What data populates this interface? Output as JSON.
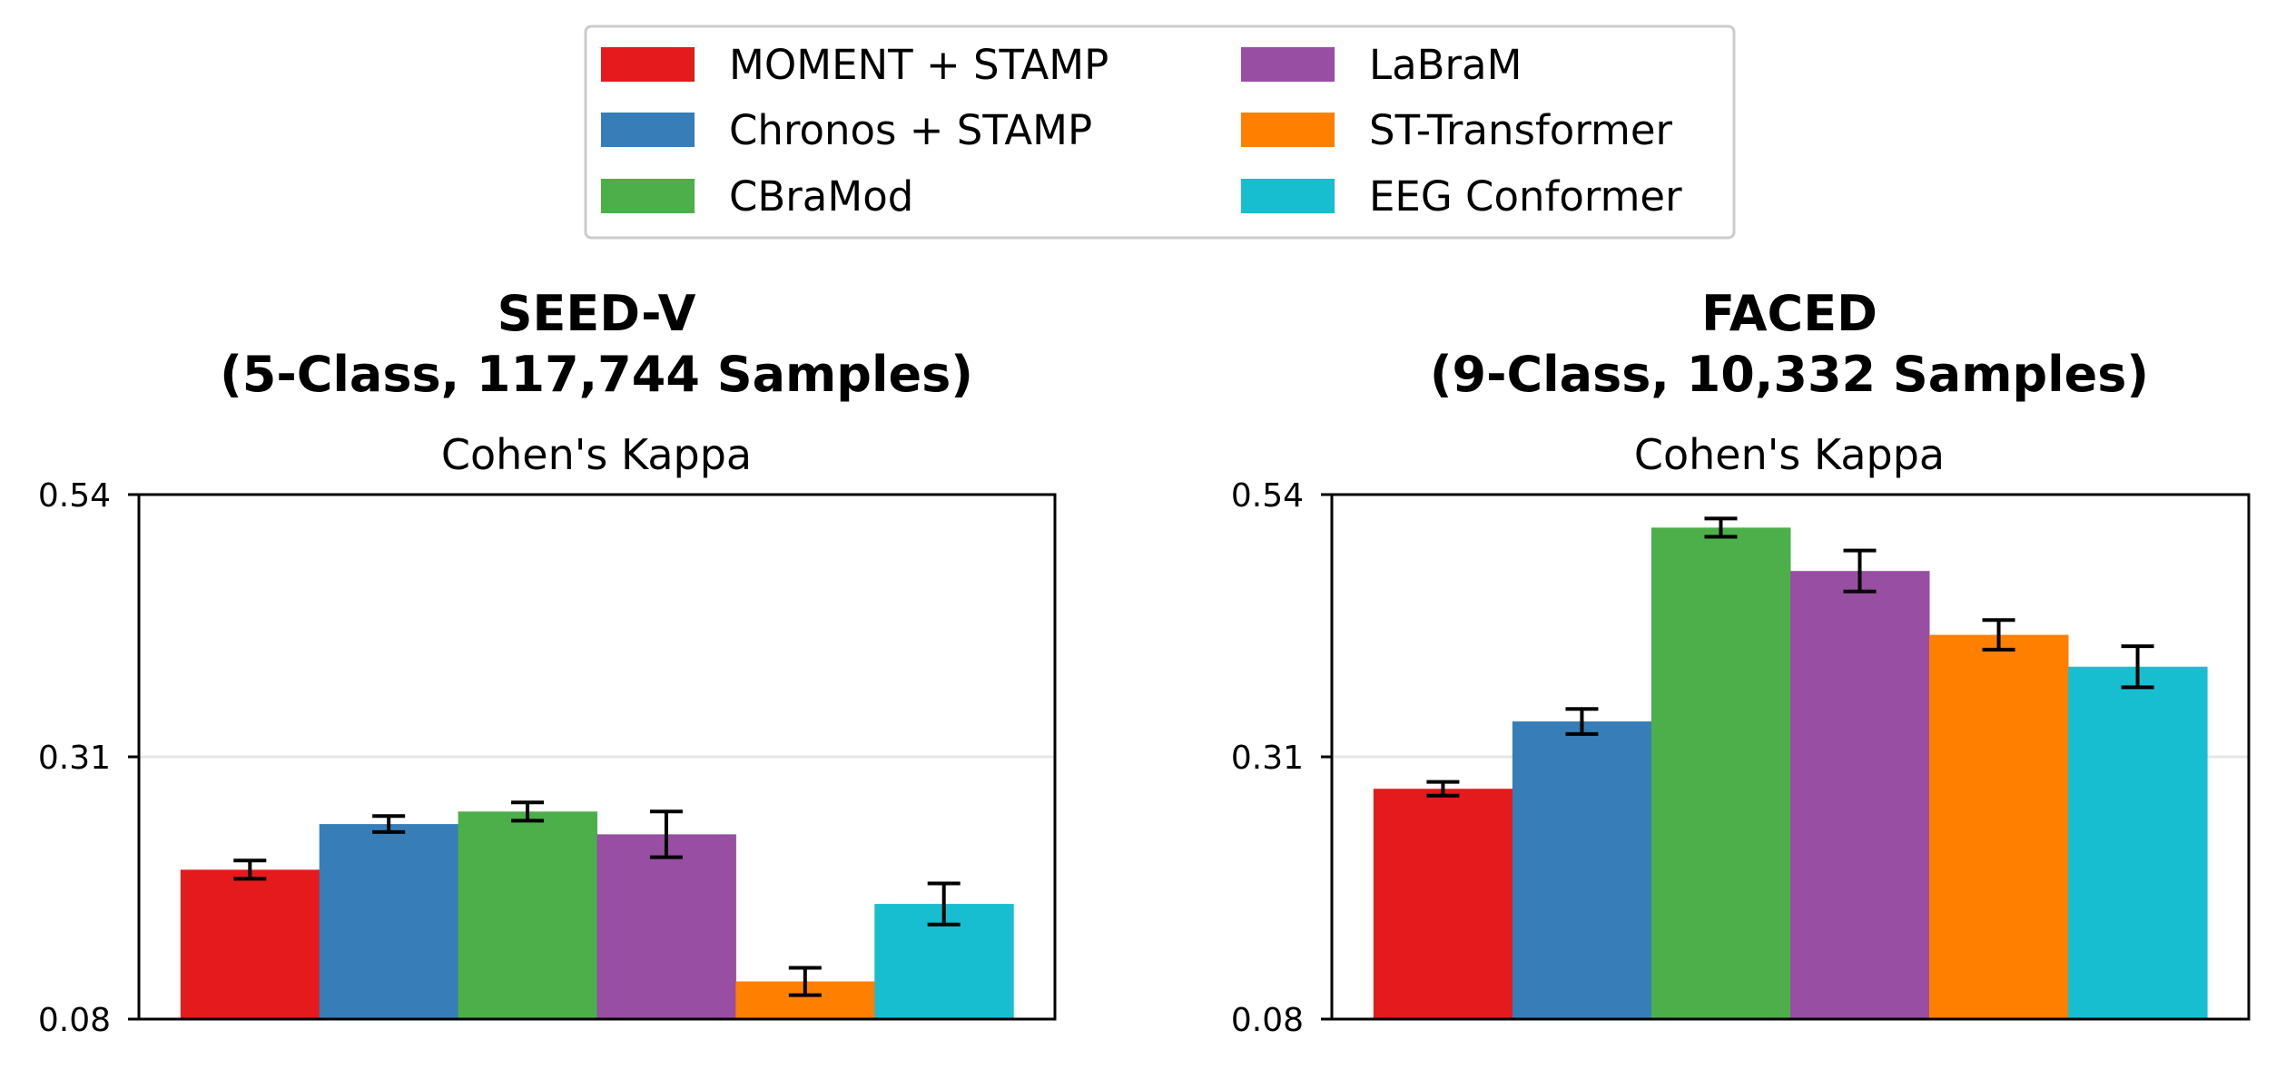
{
  "legend": {
    "entries": [
      {
        "label": "MOMENT + STAMP",
        "color": "#e41a1c"
      },
      {
        "label": "Chronos + STAMP",
        "color": "#377eb8"
      },
      {
        "label": "CBraMod",
        "color": "#4daf4a"
      },
      {
        "label": "LaBraM",
        "color": "#984ea3"
      },
      {
        "label": "ST-Transformer",
        "color": "#ff7f00"
      },
      {
        "label": "EEG Conformer",
        "color": "#17becf"
      }
    ]
  },
  "chart_data": [
    {
      "type": "bar",
      "title": "SEED-V",
      "subtitle": "(5-Class, 117,744 Samples)",
      "ylabel": "Cohen's Kappa",
      "ylim": [
        0.08,
        0.54
      ],
      "yticks": [
        "0.54",
        "0.31",
        "0.08"
      ],
      "grid": "horizontal at 0.31",
      "categories": [
        "MOMENT + STAMP",
        "Chronos + STAMP",
        "CBraMod",
        "LaBraM",
        "ST-Transformer",
        "EEG Conformer"
      ],
      "values": [
        0.211,
        0.251,
        0.262,
        0.242,
        0.113,
        0.181
      ],
      "errors": [
        0.008,
        0.007,
        0.008,
        0.02,
        0.012,
        0.018
      ]
    },
    {
      "type": "bar",
      "title": "FACED",
      "subtitle": "(9-Class, 10,332 Samples)",
      "ylabel": "Cohen's Kappa",
      "ylim": [
        0.08,
        0.54
      ],
      "yticks": [
        "0.54",
        "0.31",
        "0.08"
      ],
      "grid": "horizontal at 0.31",
      "categories": [
        "MOMENT + STAMP",
        "Chronos + STAMP",
        "CBraMod",
        "LaBraM",
        "ST-Transformer",
        "EEG Conformer"
      ],
      "values": [
        0.282,
        0.341,
        0.511,
        0.473,
        0.417,
        0.389
      ],
      "errors": [
        0.006,
        0.011,
        0.008,
        0.018,
        0.013,
        0.018
      ]
    }
  ]
}
